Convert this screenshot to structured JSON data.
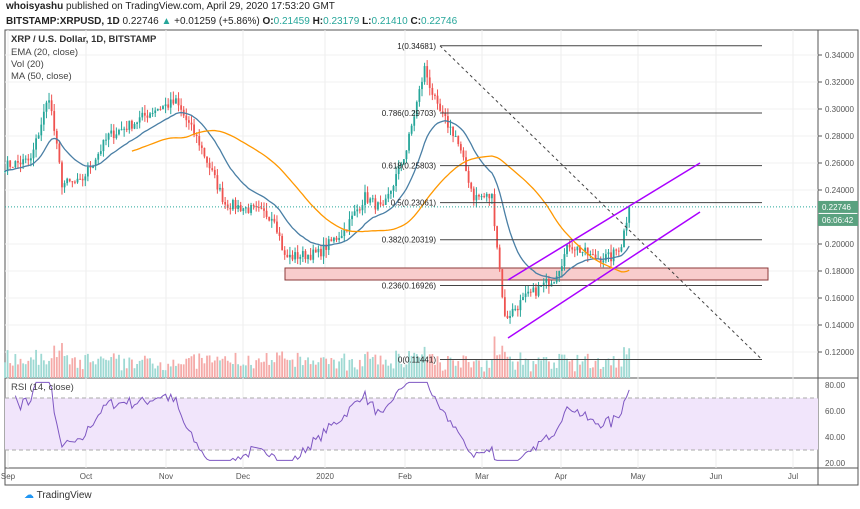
{
  "header": {
    "author": "whoisyashu",
    "published": "published on TradingView.com, April 29, 2020 17:53:20 GMT",
    "symbol": "BITSTAMP:XRPUSD, 1D",
    "last": "0.22746",
    "change": "+0.01259 (+5.86%)",
    "o_label": "O:",
    "o": "0.21459",
    "h_label": "H:",
    "h": "0.23179",
    "l_label": "L:",
    "l": "0.21410",
    "c_label": "C:",
    "c": "0.22746"
  },
  "legend": {
    "title": "XRP / U.S. Dollar, 1D, BITSTAMP",
    "ema": "EMA (20, close)",
    "vol": "Vol (20)",
    "ma": "MA (50, close)",
    "rsi": "RSI (14, close)"
  },
  "price_axis": {
    "ticks": [
      "0.34000",
      "0.32000",
      "0.30000",
      "0.28000",
      "0.26000",
      "0.24000",
      "0.20000",
      "0.18000",
      "0.16000",
      "0.14000",
      "0.12000"
    ],
    "current": "0.22746",
    "countdown": "06:06:42"
  },
  "rsi_axis": {
    "ticks": [
      "80.00",
      "60.00",
      "40.00",
      "20.00"
    ]
  },
  "time_axis": [
    "Sep",
    "Oct",
    "Nov",
    "Dec",
    "2020",
    "Feb",
    "Mar",
    "Apr",
    "May",
    "Jun",
    "Jul"
  ],
  "fib": [
    {
      "label": "1(0.34681)",
      "v": 0.34681
    },
    {
      "label": "0.786(0.29703)",
      "v": 0.29703
    },
    {
      "label": "0.618(0.25803)",
      "v": 0.25803
    },
    {
      "label": "0.5(0.23061)",
      "v": 0.23061
    },
    {
      "label": "0.382(0.20319)",
      "v": 0.20319
    },
    {
      "label": "0.236(0.16926)",
      "v": 0.16926
    },
    {
      "label": "0(0.11441)",
      "v": 0.11441
    }
  ],
  "brand": "TradingView",
  "colors": {
    "up": "#26a69a",
    "down": "#ef5350",
    "ema": "#4a7fa5",
    "ma": "#ff9800",
    "channel": "#aa00ff",
    "rsi": "#7e57c2",
    "zone": "#f8cccc"
  },
  "chart_data": {
    "type": "candlestick",
    "start": "2019-09-01",
    "keypoints_day_close": [
      [
        0,
        0.258
      ],
      [
        10,
        0.262
      ],
      [
        17,
        0.31
      ],
      [
        22,
        0.245
      ],
      [
        29,
        0.245
      ],
      [
        40,
        0.28
      ],
      [
        50,
        0.29
      ],
      [
        58,
        0.3
      ],
      [
        66,
        0.305
      ],
      [
        75,
        0.275
      ],
      [
        85,
        0.23
      ],
      [
        96,
        0.225
      ],
      [
        104,
        0.22
      ],
      [
        108,
        0.19
      ],
      [
        121,
        0.193
      ],
      [
        131,
        0.21
      ],
      [
        139,
        0.235
      ],
      [
        146,
        0.225
      ],
      [
        155,
        0.27
      ],
      [
        162,
        0.33
      ],
      [
        167,
        0.3
      ],
      [
        174,
        0.28
      ],
      [
        181,
        0.235
      ],
      [
        188,
        0.235
      ],
      [
        193,
        0.145
      ],
      [
        201,
        0.16
      ],
      [
        212,
        0.175
      ],
      [
        218,
        0.2
      ],
      [
        227,
        0.19
      ],
      [
        234,
        0.19
      ],
      [
        238,
        0.2
      ],
      [
        241,
        0.2275
      ]
    ],
    "ylim": [
      0.105,
      0.36
    ]
  }
}
